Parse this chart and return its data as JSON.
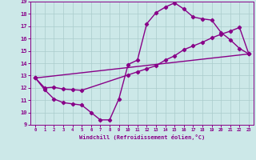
{
  "title": "",
  "xlabel": "Windchill (Refroidissement éolien,°C)",
  "xlim": [
    -0.5,
    23.5
  ],
  "ylim": [
    9,
    19
  ],
  "xticks": [
    0,
    1,
    2,
    3,
    4,
    5,
    6,
    7,
    8,
    9,
    10,
    11,
    12,
    13,
    14,
    15,
    16,
    17,
    18,
    19,
    20,
    21,
    22,
    23
  ],
  "yticks": [
    9,
    10,
    11,
    12,
    13,
    14,
    15,
    16,
    17,
    18,
    19
  ],
  "bg_color": "#cce8e8",
  "grid_color": "#aacccc",
  "line_color": "#880088",
  "line1_x": [
    0,
    1,
    2,
    3,
    4,
    5,
    6,
    7,
    8,
    9,
    10,
    11,
    12,
    13,
    14,
    15,
    16,
    17,
    18,
    19,
    20,
    21,
    22,
    23
  ],
  "line1_y": [
    12.8,
    11.85,
    11.1,
    10.8,
    10.7,
    10.6,
    10.0,
    9.4,
    9.4,
    11.1,
    13.9,
    14.25,
    17.2,
    18.1,
    18.55,
    18.9,
    18.4,
    17.75,
    17.6,
    17.5,
    16.5,
    15.9,
    15.2,
    14.75
  ],
  "line2_x": [
    0,
    1,
    2,
    3,
    4,
    5,
    10,
    11,
    12,
    13,
    14,
    15,
    16,
    17,
    18,
    19,
    20,
    21,
    22,
    23
  ],
  "line2_y": [
    12.8,
    12.0,
    12.05,
    11.9,
    11.85,
    11.8,
    13.05,
    13.3,
    13.55,
    13.8,
    14.25,
    14.6,
    15.1,
    15.4,
    15.7,
    16.05,
    16.35,
    16.6,
    16.9,
    14.75
  ],
  "line3_x": [
    0,
    23
  ],
  "line3_y": [
    12.8,
    14.75
  ],
  "marker": "D",
  "markersize": 2.2,
  "linewidth": 1.0
}
